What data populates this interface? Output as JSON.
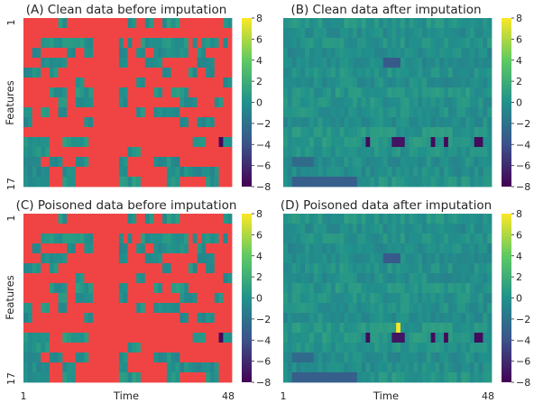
{
  "figure": {
    "xlabel": "Time",
    "ylabel": "Features",
    "x_ticks": [
      "1",
      "48"
    ],
    "y_ticks": [
      "1",
      "17"
    ],
    "colorbar_ticks": [
      "8",
      "6",
      "4",
      "2",
      "0",
      "−2",
      "−4",
      "−6",
      "−8"
    ]
  },
  "colors": {
    "missing": "#f04444",
    "colormap": [
      "#440154",
      "#3b528b",
      "#21918c",
      "#5ec962",
      "#fde725"
    ]
  },
  "chart_data": [
    {
      "type": "heatmap",
      "title": "(A) Clean data before imputation",
      "xlabel": "",
      "ylabel": "Features",
      "x_range": [
        1,
        48
      ],
      "y_range": [
        1,
        17
      ],
      "color_range": [
        -8,
        8
      ],
      "missing_mask": true,
      "poisoned": false
    },
    {
      "type": "heatmap",
      "title": "(B) Clean data after imputation",
      "xlabel": "",
      "ylabel": "",
      "x_range": [
        1,
        48
      ],
      "y_range": [
        1,
        17
      ],
      "color_range": [
        -8,
        8
      ],
      "missing_mask": false,
      "poisoned": false
    },
    {
      "type": "heatmap",
      "title": "(C) Poisoned data before imputation",
      "xlabel": "Time",
      "ylabel": "Features",
      "x_range": [
        1,
        48
      ],
      "y_range": [
        1,
        17
      ],
      "color_range": [
        -8,
        8
      ],
      "missing_mask": true,
      "poisoned": true
    },
    {
      "type": "heatmap",
      "title": "(D) Poisoned data after imputation",
      "xlabel": "Time",
      "ylabel": "",
      "x_range": [
        1,
        48
      ],
      "y_range": [
        1,
        17
      ],
      "color_range": [
        -8,
        8
      ],
      "missing_mask": false,
      "poisoned": true
    }
  ]
}
